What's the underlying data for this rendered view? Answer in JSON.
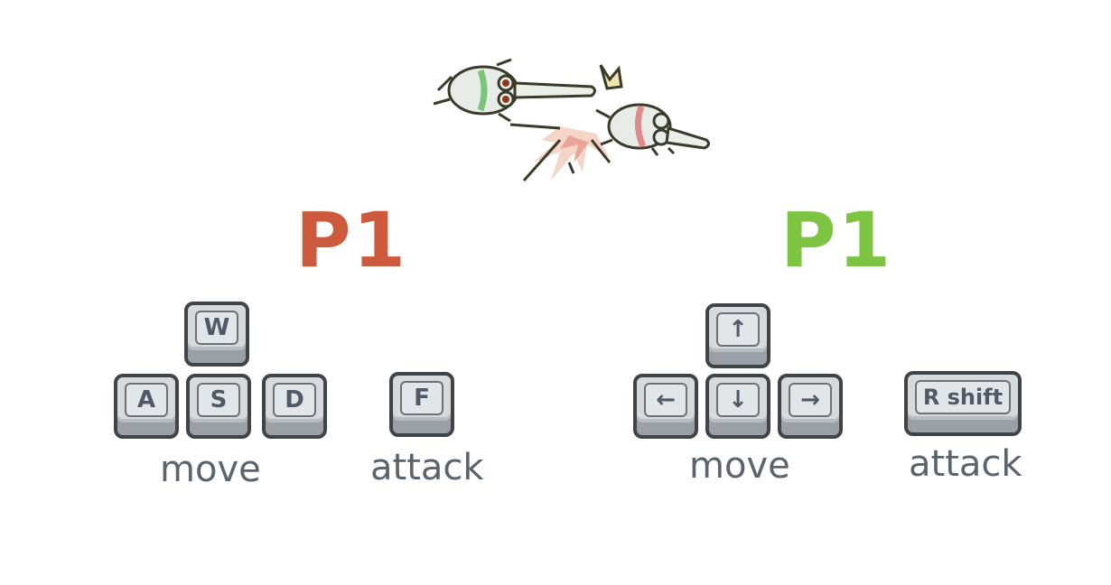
{
  "colors": {
    "p_left": "#cd5a3c",
    "p_right": "#7cc442",
    "key_text": "#4f5a66",
    "caption": "#5b646c"
  },
  "illustration": {
    "name": "two-knights-jousting-illustration"
  },
  "left": {
    "player": "P1",
    "keys": {
      "up": "W",
      "left": "A",
      "down": "S",
      "right": "D",
      "attack": "F"
    },
    "move_label": "move",
    "attack_label": "attack"
  },
  "right": {
    "player": "P1",
    "keys": {
      "up": "↑",
      "left": "←",
      "down": "↓",
      "right": "→",
      "attack": "R shift"
    },
    "move_label": "move",
    "attack_label": "attack"
  }
}
